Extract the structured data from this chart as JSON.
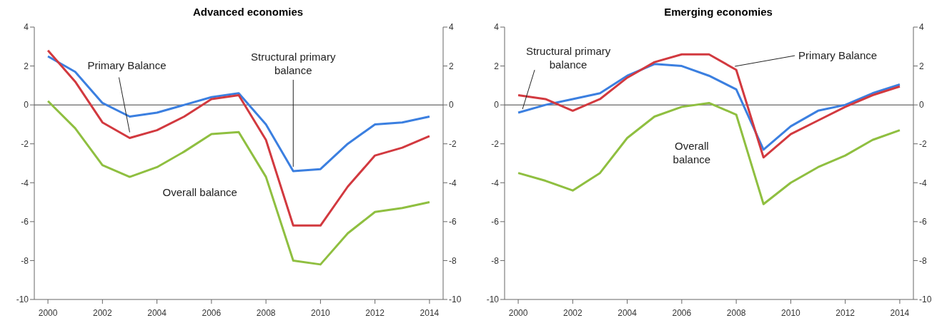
{
  "chart_data": [
    {
      "type": "line",
      "title": "Advanced economies",
      "x": [
        2000,
        2001,
        2002,
        2003,
        2004,
        2005,
        2006,
        2007,
        2008,
        2009,
        2010,
        2011,
        2012,
        2013,
        2014
      ],
      "xlim": [
        1999.5,
        2014.5
      ],
      "xticks": [
        2000,
        2002,
        2004,
        2006,
        2008,
        2010,
        2012,
        2014
      ],
      "ylim": [
        -10,
        4
      ],
      "yticks": [
        -10,
        -8,
        -6,
        -4,
        -2,
        0,
        2,
        4
      ],
      "y2lim": [
        -10,
        4
      ],
      "y2ticks": [
        -10,
        -8,
        -6,
        -4,
        -2,
        0,
        2,
        4
      ],
      "grid": false,
      "legend": false,
      "marker": "none",
      "line_style": "solid",
      "ref_lines": [
        {
          "axis": "y",
          "value": 0,
          "color": "#808080"
        }
      ],
      "annotations": [
        {
          "text": "Structural primary balance",
          "x": 2009,
          "y": -3.4
        },
        {
          "text": "Primary Balance",
          "x": 2003,
          "y": -1.7
        }
      ],
      "series": [
        {
          "color": "#3b7fe0",
          "values": [
            2.5,
            1.7,
            0.1,
            -0.6,
            -0.4,
            0.0,
            0.4,
            0.6,
            -1.0,
            -3.4,
            -3.3,
            -2.0,
            -1.0,
            -0.9,
            -0.6
          ]
        },
        {
          "color": "#d2393f",
          "values": [
            2.8,
            1.2,
            -0.9,
            -1.7,
            -1.3,
            -0.6,
            0.3,
            0.5,
            -1.8,
            -6.2,
            -6.2,
            -4.2,
            -2.6,
            -2.2,
            -1.6
          ]
        },
        {
          "name": "Overall balance",
          "color": "#8fbf40",
          "values": [
            0.2,
            -1.2,
            -3.1,
            -3.7,
            -3.2,
            -2.4,
            -1.5,
            -1.4,
            -3.7,
            -8.0,
            -8.2,
            -6.6,
            -5.5,
            -5.3,
            -5.0
          ]
        }
      ]
    },
    {
      "type": "line",
      "title": "Emerging economies",
      "x": [
        2000,
        2001,
        2002,
        2003,
        2004,
        2005,
        2006,
        2007,
        2008,
        2009,
        2010,
        2011,
        2012,
        2013,
        2014
      ],
      "xlim": [
        1999.5,
        2014.5
      ],
      "xticks": [
        2000,
        2002,
        2004,
        2006,
        2008,
        2010,
        2012,
        2014
      ],
      "ylim": [
        -10,
        4
      ],
      "yticks": [
        -10,
        -8,
        -6,
        -4,
        -2,
        0,
        2,
        4
      ],
      "y2lim": [
        -10,
        4
      ],
      "y2ticks": [
        -10,
        -8,
        -6,
        -4,
        -2,
        0,
        2,
        4
      ],
      "grid": false,
      "legend": false,
      "marker": "none",
      "line_style": "solid",
      "ref_lines": [
        {
          "axis": "y",
          "value": 0,
          "color": "#808080"
        }
      ],
      "annotations": [
        {
          "text": "Structural primary balance",
          "x": 2000,
          "y": -0.4
        },
        {
          "text": "Primary Balance",
          "x": 2008,
          "y": 1.8
        }
      ],
      "series": [
        {
          "color": "#3b7fe0",
          "values": [
            -0.4,
            0.0,
            0.3,
            0.6,
            1.5,
            2.1,
            2.0,
            1.5,
            0.8,
            -2.3,
            -1.1,
            -0.3,
            0.0,
            0.6,
            1.05
          ]
        },
        {
          "color": "#d2393f",
          "values": [
            0.5,
            0.3,
            -0.3,
            0.3,
            1.4,
            2.2,
            2.6,
            2.6,
            1.8,
            -2.7,
            -1.5,
            -0.8,
            -0.1,
            0.5,
            0.95
          ]
        },
        {
          "name": "Overall balance",
          "color": "#8fbf40",
          "values": [
            -3.5,
            -3.9,
            -4.4,
            -3.5,
            -1.7,
            -0.6,
            -0.1,
            0.1,
            -0.5,
            -5.1,
            -4.0,
            -3.2,
            -2.6,
            -1.8,
            -1.3
          ]
        }
      ]
    }
  ]
}
